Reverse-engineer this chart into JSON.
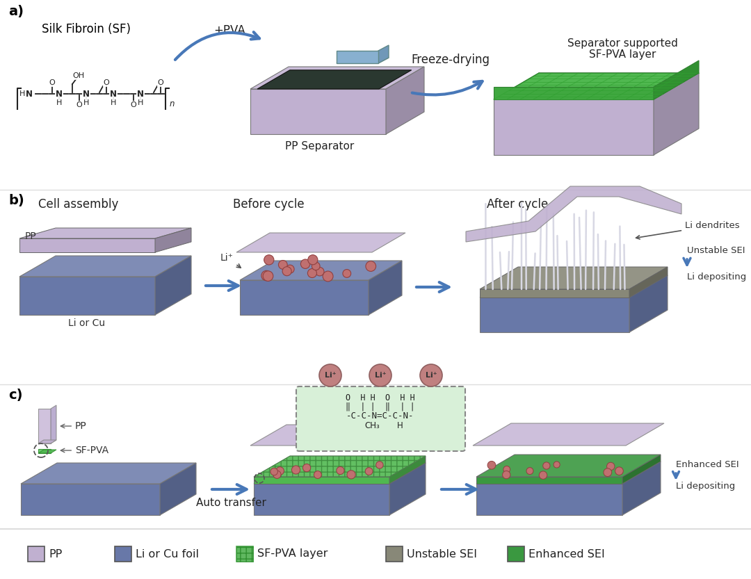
{
  "bg_color": "#ffffff",
  "pp_color": "#c0b0d0",
  "pp_top": "#d4c8e2",
  "pp_side": "#a898bc",
  "li_cu_color": "#6878a8",
  "li_cu_top": "#7888b8",
  "li_cu_side": "#4858888",
  "sf_color": "#60b860",
  "sf_top": "#70c870",
  "sf_side": "#409040",
  "unstable_color": "#888878",
  "unstable_top": "#999988",
  "unstable_side": "#666658",
  "arrow_color": "#4878b8",
  "legend_items": [
    {
      "label": "PP",
      "color": "#c0b0d0",
      "hatch": null
    },
    {
      "label": "Li or Cu foil",
      "color": "#6878a8",
      "hatch": null
    },
    {
      "label": "SF-PVA layer",
      "color": "#60b860",
      "hatch": "++"
    },
    {
      "label": "Unstable SEI",
      "color": "#888878",
      "hatch": null
    },
    {
      "label": "Enhanced SEI",
      "color": "#3a9840",
      "hatch": null
    }
  ]
}
